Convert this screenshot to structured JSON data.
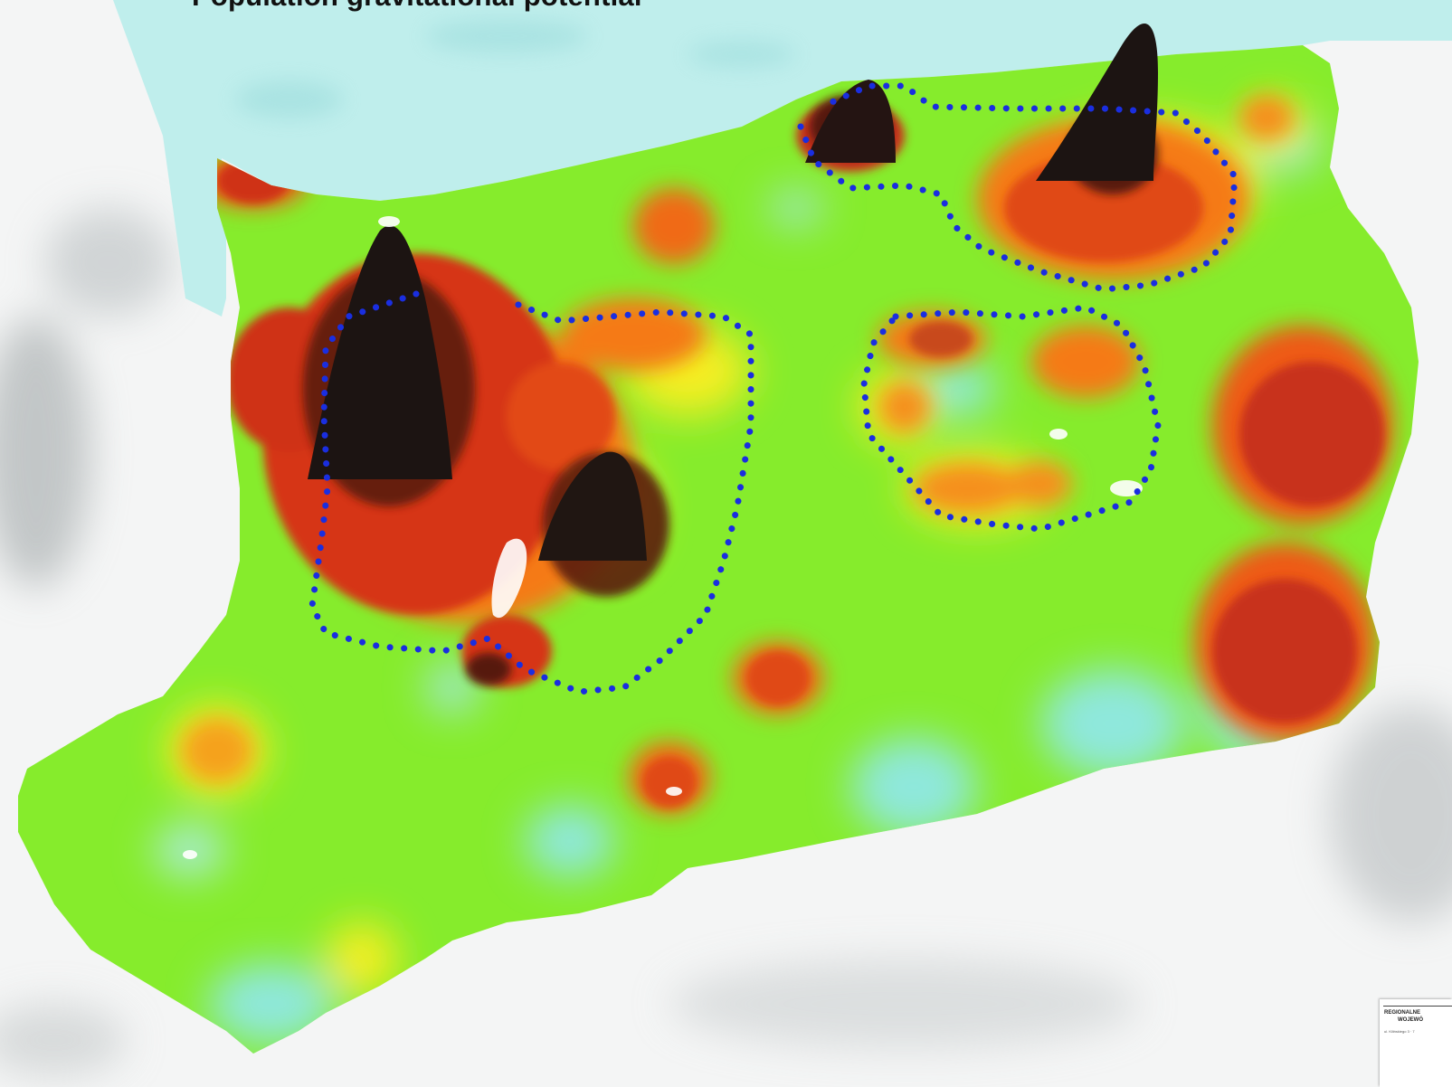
{
  "title": "Population gravitational potential",
  "stamp": {
    "line1": "REGIONALNE",
    "line2": "WOJEWÓ",
    "line3": "ul. Kilińskiego 3 · 7"
  },
  "colors": {
    "background": "#f4f5f5",
    "water": "#bfeeec",
    "low": "#8fe8dc",
    "base": "#86ec2c",
    "medium": "#f6ee20",
    "high": "#f57a12",
    "very_high": "#d63512",
    "peak": "#1c1412",
    "outline": "#1a2ee0"
  },
  "icons": [
    "dotted-outline-region",
    "peak-spike"
  ]
}
